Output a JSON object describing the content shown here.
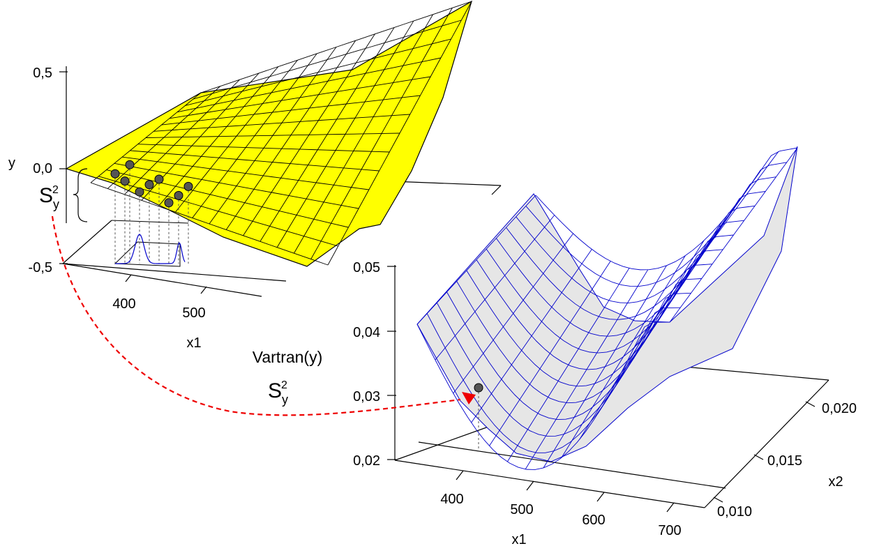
{
  "chart_data": [
    {
      "type": "surface",
      "surface_color": "#ffff00",
      "mesh_color": "#000000",
      "axes": {
        "y": {
          "label": "y",
          "ticks": [
            "0,5",
            "0,0",
            "-0,5"
          ]
        },
        "x1": {
          "label": "x1",
          "ticks": [
            "400",
            "500"
          ]
        }
      },
      "bracket_label": {
        "base": "S",
        "sub": "y",
        "sup": "2"
      },
      "sample_points": [
        {
          "x1": 395,
          "y": -0.02
        },
        {
          "x1": 405,
          "y": -0.06
        },
        {
          "x1": 410,
          "y": 0.03
        },
        {
          "x1": 420,
          "y": -0.12
        },
        {
          "x1": 430,
          "y": -0.08
        },
        {
          "x1": 440,
          "y": -0.05
        },
        {
          "x1": 450,
          "y": -0.18
        },
        {
          "x1": 460,
          "y": -0.14
        },
        {
          "x1": 470,
          "y": -0.09
        }
      ],
      "density_curve_color": "#0000cc"
    },
    {
      "type": "surface",
      "title": "Vartran(y)",
      "surface_color": "#e6e6e6",
      "mesh_color": "#0000cc",
      "axes": {
        "z": {
          "ticks": [
            "0,05",
            "0,04",
            "0,03",
            "0,02"
          ],
          "range": [
            0.02,
            0.05
          ]
        },
        "x1": {
          "label": "x1",
          "ticks": [
            "400",
            "500",
            "600",
            "700"
          ],
          "range": [
            350,
            700
          ]
        },
        "x2": {
          "label": "x2",
          "ticks": [
            "0,010",
            "0,015",
            "0,020"
          ],
          "range": [
            0.008,
            0.022
          ]
        }
      },
      "marker_label": {
        "base": "S",
        "sub": "y",
        "sup": "2"
      },
      "highlight_point": {
        "x1": 430,
        "x2": 0.009,
        "z": 0.031
      },
      "arrow_color": "#ee0000"
    }
  ]
}
